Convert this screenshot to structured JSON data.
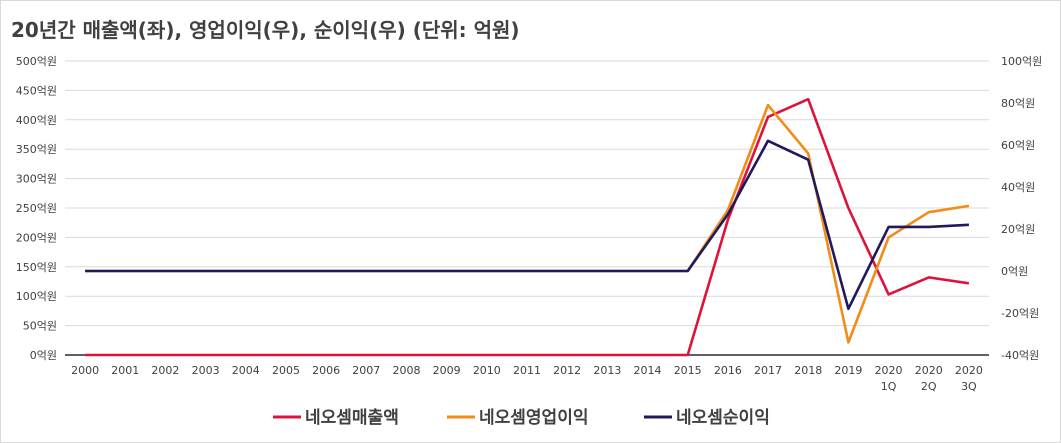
{
  "chart_data": {
    "type": "line",
    "title": "20년간 매출액(좌), 영업이익(우), 순이익(우) (단위: 억원)",
    "categories": [
      "2000",
      "2001",
      "2002",
      "2003",
      "2004",
      "2005",
      "2006",
      "2007",
      "2008",
      "2009",
      "2010",
      "2011",
      "2012",
      "2013",
      "2014",
      "2015",
      "2016",
      "2017",
      "2018",
      "2019",
      "2020\n1Q",
      "2020\n2Q",
      "2020\n3Q"
    ],
    "y_left": {
      "ticks": [
        "0억원",
        "50억원",
        "100억원",
        "150억원",
        "200억원",
        "250억원",
        "300억원",
        "350억원",
        "400억원",
        "450억원",
        "500억원"
      ],
      "ylim": [
        0,
        500
      ]
    },
    "y_right": {
      "ticks": [
        "-40억원",
        "-20억원",
        "0억원",
        "20억원",
        "40억원",
        "60억원",
        "80억원",
        "100억원"
      ],
      "ylim": [
        -40,
        100
      ]
    },
    "grid": true,
    "legend_position": "bottom",
    "series": [
      {
        "name": "네오셈매출액",
        "axis": "left",
        "color": "#dc143c",
        "values": [
          0,
          0,
          0,
          0,
          0,
          0,
          0,
          0,
          0,
          0,
          0,
          0,
          0,
          0,
          0,
          0,
          230,
          405,
          435,
          250,
          103,
          132,
          122
        ]
      },
      {
        "name": "네오셈영업이익",
        "axis": "right",
        "color": "#f28c18",
        "values": [
          0,
          0,
          0,
          0,
          0,
          0,
          0,
          0,
          0,
          0,
          0,
          0,
          0,
          0,
          0,
          0,
          29,
          79,
          56,
          -34,
          16,
          28,
          31
        ]
      },
      {
        "name": "네오셈순이익",
        "axis": "right",
        "color": "#1f1a5c",
        "values": [
          0,
          0,
          0,
          0,
          0,
          0,
          0,
          0,
          0,
          0,
          0,
          0,
          0,
          0,
          0,
          0,
          27,
          62,
          53,
          -18,
          21,
          21,
          22
        ]
      }
    ]
  }
}
